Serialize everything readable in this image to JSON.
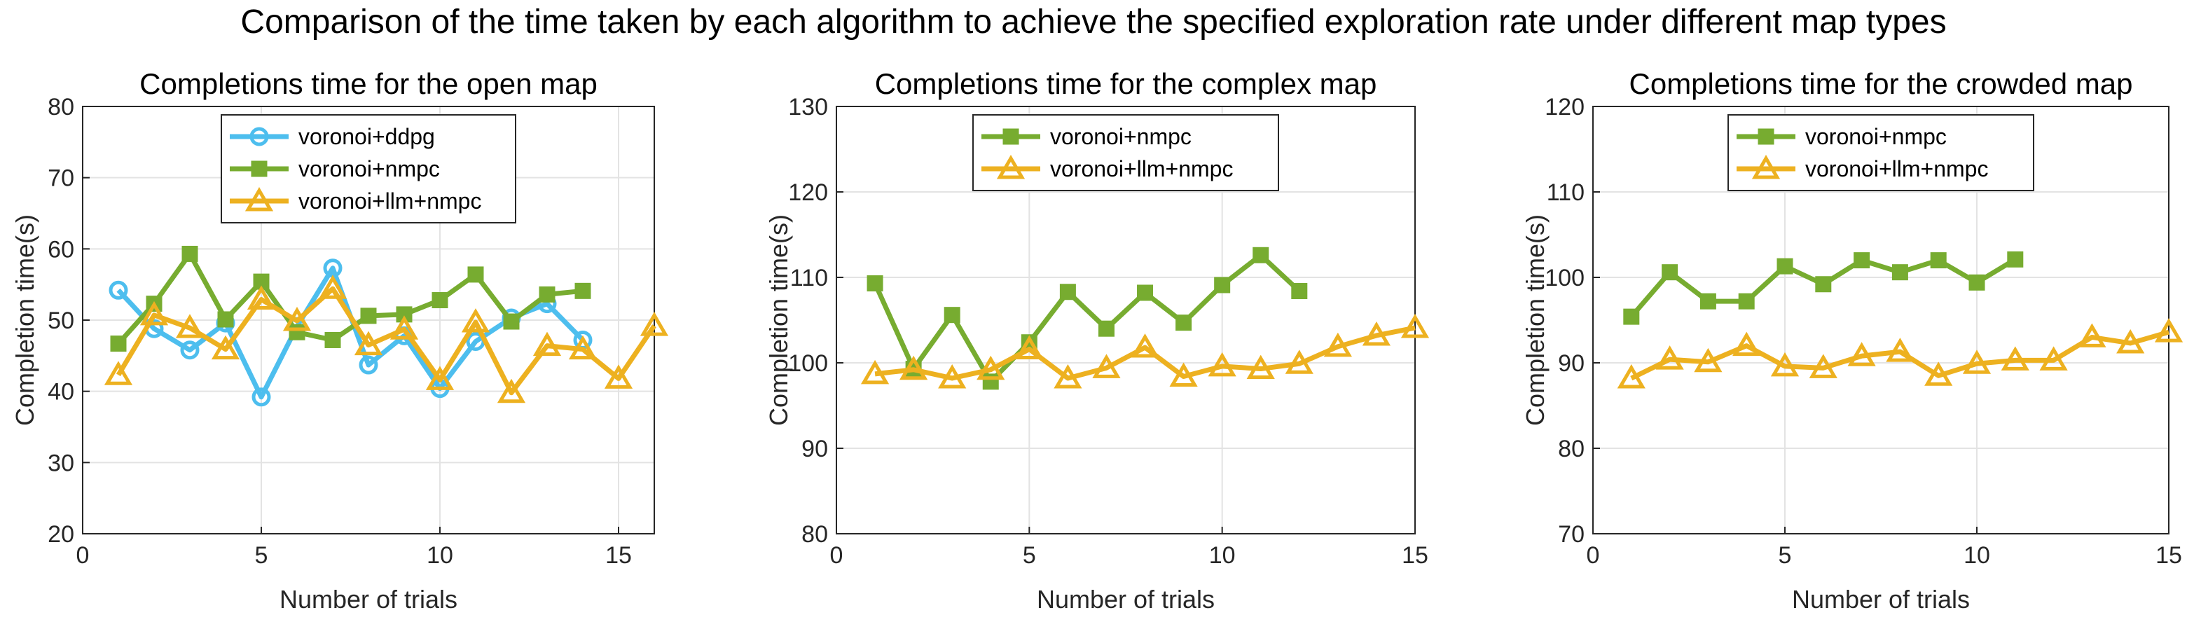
{
  "suptitle": "Comparison of the time taken by each algorithm to achieve the specified exploration rate under different map types",
  "colors": {
    "voronoi+ddpg": "#4DBEEE",
    "voronoi+nmpc": "#77AC30",
    "voronoi+llm+nmpc": "#EDB120"
  },
  "chart_data": [
    {
      "type": "line",
      "title": "Completions time for the open map",
      "xlabel": "Number of trials",
      "ylabel": "Completion time(s)",
      "xlim": [
        0,
        16
      ],
      "ylim": [
        20,
        80
      ],
      "xticks": [
        0,
        5,
        10,
        15
      ],
      "yticks": [
        20,
        30,
        40,
        50,
        60,
        70,
        80
      ],
      "grid": true,
      "legend": "top-center",
      "series": [
        {
          "name": "voronoi+ddpg",
          "marker": "circle",
          "color": "#4DBEEE",
          "x": [
            1,
            2,
            3,
            4,
            5,
            6,
            7,
            8,
            9,
            10,
            11,
            12,
            13,
            14
          ],
          "y": [
            54.2,
            48.8,
            45.8,
            49.6,
            39.2,
            49.1,
            57.3,
            43.7,
            47.8,
            40.4,
            47.0,
            50.3,
            52.3,
            47.2
          ]
        },
        {
          "name": "voronoi+nmpc",
          "marker": "square",
          "color": "#77AC30",
          "x": [
            1,
            2,
            3,
            4,
            5,
            6,
            7,
            8,
            9,
            10,
            11,
            12,
            13,
            14
          ],
          "y": [
            46.7,
            52.3,
            59.3,
            50.1,
            55.4,
            48.3,
            47.2,
            50.6,
            50.8,
            52.8,
            56.4,
            49.8,
            53.6,
            54.1
          ]
        },
        {
          "name": "voronoi+llm+nmpc",
          "marker": "triangle",
          "color": "#EDB120",
          "x": [
            1,
            2,
            3,
            4,
            5,
            6,
            7,
            8,
            9,
            10,
            11,
            12,
            13,
            14,
            15,
            16
          ],
          "y": [
            42.3,
            50.7,
            48.9,
            45.9,
            52.9,
            49.9,
            54.4,
            46.5,
            48.7,
            41.6,
            49.7,
            39.8,
            46.4,
            45.9,
            41.8,
            49.2
          ]
        }
      ]
    },
    {
      "type": "line",
      "title": "Completions time for the complex map",
      "xlabel": "Number of trials",
      "ylabel": "Completion time(s)",
      "xlim": [
        0,
        15
      ],
      "ylim": [
        80,
        130
      ],
      "xticks": [
        0,
        5,
        10,
        15
      ],
      "yticks": [
        80,
        90,
        100,
        110,
        120,
        130
      ],
      "grid": true,
      "legend": "top-center",
      "series": [
        {
          "name": "voronoi+nmpc",
          "marker": "square",
          "color": "#77AC30",
          "x": [
            1,
            2,
            3,
            4,
            5,
            6,
            7,
            8,
            9,
            10,
            11,
            12
          ],
          "y": [
            109.3,
            99.3,
            105.6,
            97.8,
            102.4,
            108.3,
            104.0,
            108.2,
            104.7,
            109.1,
            112.6,
            108.4
          ]
        },
        {
          "name": "voronoi+llm+nmpc",
          "marker": "triangle",
          "color": "#EDB120",
          "x": [
            1,
            2,
            3,
            4,
            5,
            6,
            7,
            8,
            9,
            10,
            11,
            12,
            13,
            14,
            15
          ],
          "y": [
            98.7,
            99.2,
            98.2,
            99.2,
            101.6,
            98.2,
            99.4,
            101.8,
            98.4,
            99.6,
            99.3,
            99.9,
            101.9,
            103.2,
            104.1
          ]
        }
      ]
    },
    {
      "type": "line",
      "title": "Completions time for the crowded map",
      "xlabel": "Number of trials",
      "ylabel": "Completion time(s)",
      "xlim": [
        0,
        15
      ],
      "ylim": [
        70,
        120
      ],
      "xticks": [
        0,
        5,
        10,
        15
      ],
      "yticks": [
        70,
        80,
        90,
        100,
        110,
        120
      ],
      "grid": true,
      "legend": "top-center",
      "series": [
        {
          "name": "voronoi+nmpc",
          "marker": "square",
          "color": "#77AC30",
          "x": [
            1,
            2,
            3,
            4,
            5,
            6,
            7,
            8,
            9,
            10,
            11
          ],
          "y": [
            95.4,
            100.6,
            97.2,
            97.2,
            101.3,
            99.2,
            102.0,
            100.6,
            102.0,
            99.4,
            102.1
          ]
        },
        {
          "name": "voronoi+llm+nmpc",
          "marker": "triangle",
          "color": "#EDB120",
          "x": [
            1,
            2,
            3,
            4,
            5,
            6,
            7,
            8,
            9,
            10,
            11,
            12,
            13,
            14,
            15
          ],
          "y": [
            88.2,
            90.4,
            90.1,
            92.0,
            89.6,
            89.4,
            90.8,
            91.3,
            88.5,
            89.9,
            90.3,
            90.3,
            93.0,
            92.3,
            93.6
          ]
        }
      ]
    }
  ]
}
